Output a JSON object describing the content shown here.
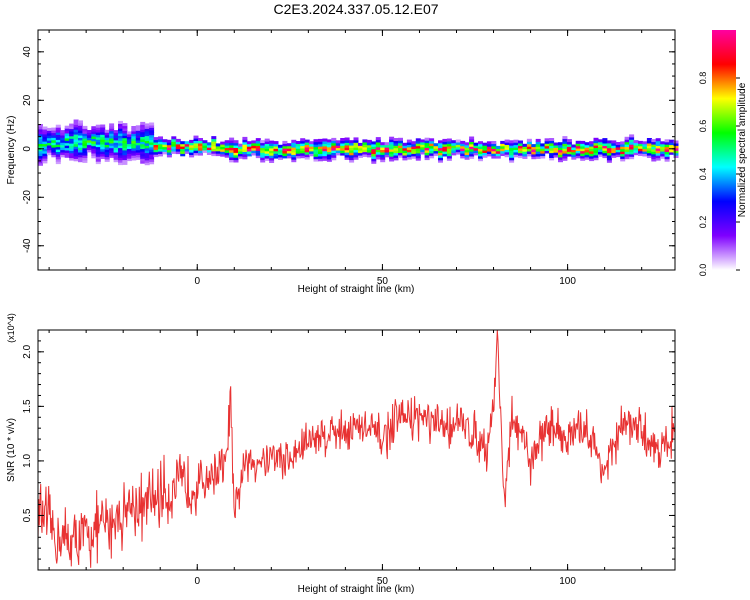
{
  "title": "C2E3.2024.337.05.12.E07",
  "chart_data": [
    {
      "type": "heatmap",
      "title": "C2E3.2024.337.05.12.E07",
      "xlabel": "Height of straight line (km)",
      "ylabel": "Frequency (Hz)",
      "xlim": [
        -43,
        129
      ],
      "ylim": [
        -50,
        49
      ],
      "x_ticks": [
        0,
        50,
        100
      ],
      "y_ticks": [
        -40,
        -20,
        0,
        20,
        40
      ],
      "x_tick_labels": [
        "0",
        "50",
        "100"
      ],
      "y_tick_labels": [
        "-40",
        "-20",
        "0",
        "20",
        "40"
      ],
      "colorbar": {
        "label": "Normalized spectral amplitude",
        "range": [
          0,
          1
        ],
        "ticks": [
          0.0,
          0.2,
          0.4,
          0.6,
          0.8
        ],
        "tick_labels": [
          "0.0",
          "0.2",
          "0.4",
          "0.6",
          "0.8"
        ],
        "colors": [
          "#ffffff",
          "#7f00ff",
          "#0000ff",
          "#00ffff",
          "#00ff00",
          "#ffff00",
          "#ff0000",
          "#ff00a0"
        ]
      },
      "band": [
        {
          "x_range": [
            -43,
            -12
          ],
          "center_hz": 2.5,
          "half_width_hz": 7,
          "peak_amplitude": 0.55
        },
        {
          "x_range": [
            -12,
            6
          ],
          "center_hz": 1,
          "half_width_hz": 3,
          "peak_amplitude": 0.95
        },
        {
          "x_range": [
            6,
            129
          ],
          "center_hz": 0,
          "half_width_hz": 3.5,
          "peak_amplitude": 0.9
        }
      ],
      "grid": false
    },
    {
      "type": "line",
      "xlabel": "Height of straight line (km)",
      "ylabel": "SNR (10 * v/v)",
      "y_multiplier": "(x10^4)",
      "xlim": [
        -43,
        129
      ],
      "ylim": [
        0,
        2.2
      ],
      "x_ticks": [
        0,
        50,
        100
      ],
      "y_ticks": [
        0.5,
        1.0,
        1.5,
        2.0
      ],
      "x_tick_labels": [
        "0",
        "50",
        "100"
      ],
      "y_tick_labels": [
        "0.5",
        "1.0",
        "1.5",
        "2.0"
      ],
      "series": [
        {
          "color": "#e83232",
          "x": [
            -43,
            -38,
            -33,
            -28,
            -23,
            -18,
            -15,
            -10,
            -5,
            0,
            5,
            8,
            9,
            10,
            12,
            15,
            20,
            25,
            30,
            35,
            40,
            45,
            50,
            55,
            60,
            65,
            70,
            75,
            78,
            80,
            81,
            83,
            85,
            90,
            95,
            100,
            105,
            110,
            115,
            120,
            125,
            129
          ],
          "y": [
            0.55,
            0.3,
            0.25,
            0.35,
            0.45,
            0.6,
            0.55,
            0.7,
            0.75,
            0.8,
            0.9,
            1.0,
            1.65,
            0.4,
            0.9,
            1.0,
            1.05,
            1.0,
            1.2,
            1.25,
            1.3,
            1.3,
            1.2,
            1.4,
            1.4,
            1.3,
            1.35,
            1.25,
            1.1,
            1.5,
            2.15,
            0.6,
            1.4,
            1.0,
            1.35,
            1.2,
            1.3,
            0.9,
            1.35,
            1.25,
            1.1,
            1.3
          ]
        }
      ],
      "grid": false
    }
  ]
}
